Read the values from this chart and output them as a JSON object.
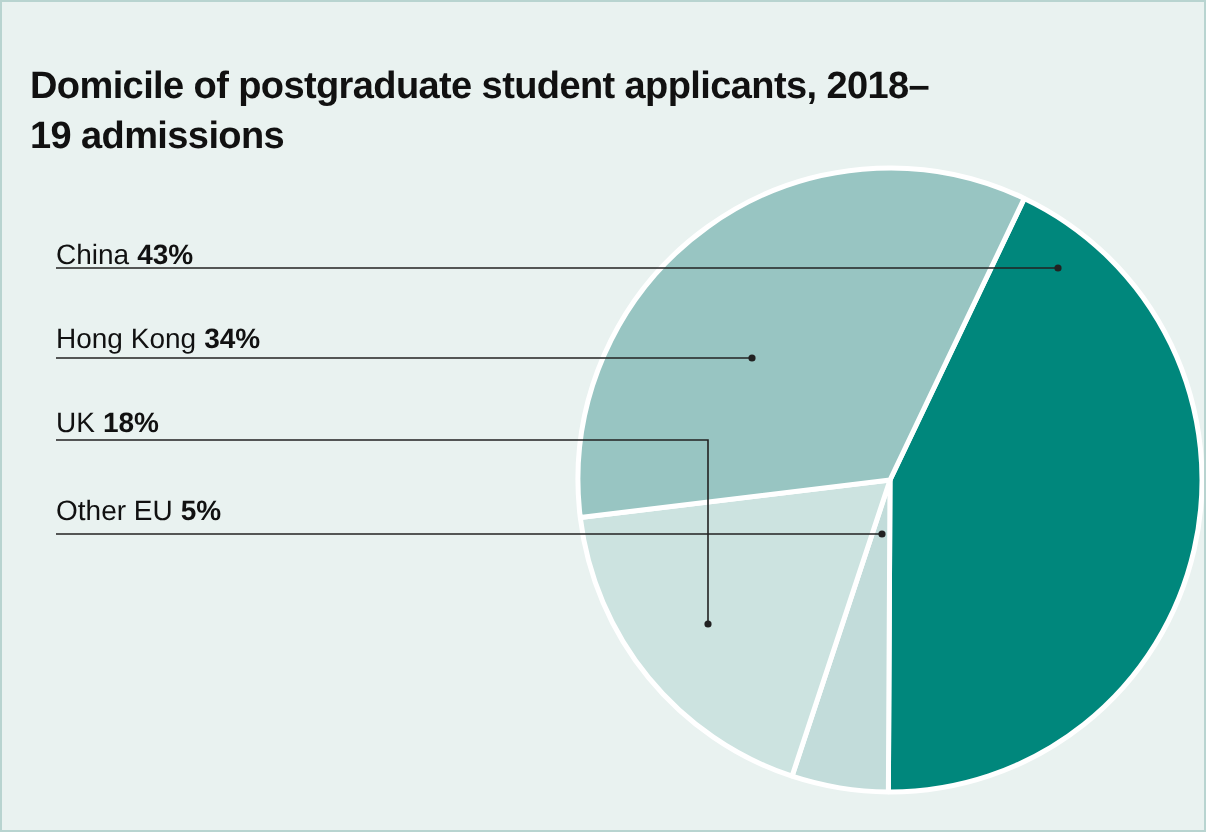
{
  "chart_data": {
    "type": "pie",
    "title": "Domicile of postgraduate student applicants, 2018–19 admissions",
    "categories": [
      "China",
      "Other EU",
      "UK",
      "Hong Kong"
    ],
    "values": [
      43,
      5,
      18,
      34
    ],
    "value_labels": [
      "43%",
      "5%",
      "18%",
      "34%"
    ],
    "colors": [
      "#00877c",
      "#c2dcda",
      "#cce3e0",
      "#98c5c2"
    ],
    "legend": false
  }
}
